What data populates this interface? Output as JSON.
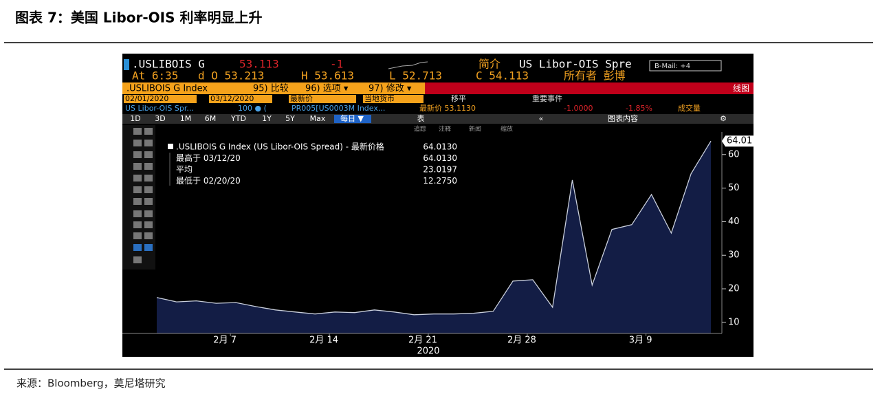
{
  "header": {
    "title": "图表 7：美国 Libor-OIS 利率明显上升"
  },
  "footer": {
    "source": "来源：Bloomberg，莫尼塔研究"
  },
  "terminal": {
    "row1": [
      ".USLIBOIS G",
      "53.113",
      "-1",
      "简介",
      "US Libor-OIS Spre",
      "B-Mail: +4"
    ],
    "row2": [
      "At 6:35",
      "d O 53.213",
      "H 53.613",
      "L 52.713",
      "C 54.113",
      "所有者 彭博"
    ],
    "row3": [
      ".USLIBOIS G Index",
      "95) 比较",
      "96) 选项 ▾",
      "97) 修改 ▾",
      "线图"
    ],
    "row4": [
      "02/01/2020",
      "03/12/2020",
      "最新价",
      "当地货币",
      "移平",
      "重要事件"
    ],
    "row5": [
      "US Libor-OIS Spr...",
      "100 ● (",
      "PR005[US0003M Index...",
      "最新价 53.1130",
      "-1.0000",
      "-1.85%",
      "成交量"
    ],
    "row6": [
      "1D",
      "3D",
      "1M",
      "6M",
      "YTD",
      "1Y",
      "5Y",
      "Max",
      "每日 ▼",
      "表",
      "«",
      "图表内容",
      "⚙"
    ],
    "tools": [
      "追踪",
      "注释",
      "新闻",
      "缩放"
    ]
  },
  "chart_data": {
    "type": "area",
    "categories": [
      null,
      null,
      null,
      null,
      "2月 7",
      null,
      null,
      null,
      null,
      "2月 14",
      null,
      null,
      null,
      null,
      "2月 21",
      null,
      null,
      null,
      null,
      "2月 28",
      null,
      null,
      null,
      null,
      null,
      "3月 9",
      null,
      null,
      null
    ],
    "values": [
      17.4,
      16.1,
      16.4,
      15.7,
      15.9,
      14.7,
      13.7,
      13.1,
      12.5,
      13.1,
      12.9,
      13.7,
      13.1,
      12.275,
      12.5,
      12.5,
      12.7,
      13.3,
      22.3,
      22.7,
      14.5,
      52.4,
      21.1,
      37.7,
      39.1,
      48.1,
      36.6,
      54.3,
      64.013
    ],
    "color": "#131d45",
    "line_color": "#c9cfdc",
    "xlabel": "2020",
    "ylim": [
      6.7,
      66.1
    ],
    "yticks": [
      10,
      20,
      30,
      40,
      50,
      60
    ],
    "grid": false,
    "legend": {
      "series_name": ".USLIBOIS G Index (US Libor-OIS Spread) - 最新价格",
      "stats": [
        {
          "name": null,
          "value": 64.013,
          "value_label": "64.0130"
        },
        {
          "name": "最高于 03/12/20",
          "value": 64.013,
          "value_label": "64.0130"
        },
        {
          "name": "平均",
          "value": 23.0197,
          "value_label": "23.0197"
        },
        {
          "name": "最低于 02/20/20",
          "value": 12.275,
          "value_label": "12.2750"
        }
      ]
    },
    "last_label": {
      "value": 64.013,
      "label": "64.01"
    }
  }
}
